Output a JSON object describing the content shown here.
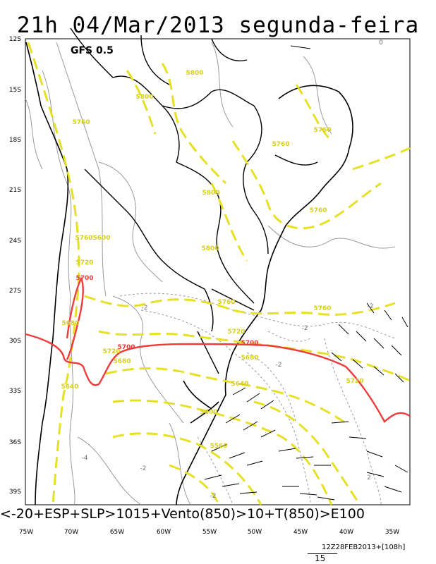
{
  "header": {
    "title": "21h 04/Mar/2013 segunda-feira",
    "model": "GFS 0.5"
  },
  "axes": {
    "lat_labels": [
      "12S",
      "15S",
      "18S",
      "21S",
      "24S",
      "27S",
      "30S",
      "33S",
      "36S",
      "39S"
    ],
    "lon_labels": [
      "75W",
      "70W",
      "65W",
      "60W",
      "55W",
      "50W",
      "45W",
      "40W",
      "35W"
    ]
  },
  "contours": {
    "yellow_labels": [
      "5800",
      "5800",
      "5760",
      "5760",
      "5760",
      "5800",
      "5760",
      "5800",
      "5760",
      "5720",
      "5760",
      "5760",
      "5720",
      "5680",
      "5720",
      "5680",
      "5720",
      "5680",
      "5640",
      "5600",
      "5640",
      "5560",
      "5600"
    ],
    "red_labels": [
      "5700",
      "5700",
      "5700"
    ],
    "gray_labels": [
      "-2",
      "-2",
      "-2",
      "-4",
      "-2",
      "0",
      "-2",
      "2",
      "-2"
    ]
  },
  "legend": {
    "caption": "<-20+ESP+SLP>1015+Vento(850)>10+T(850)>E100",
    "run": "12Z28FEB2013+[108h]",
    "vector_scale": "15"
  },
  "colors": {
    "yellow_contour": "#e6e027",
    "red_contour": "#ee3b3b",
    "gray_contour": "#9a9a9a",
    "coast": "#000000"
  }
}
